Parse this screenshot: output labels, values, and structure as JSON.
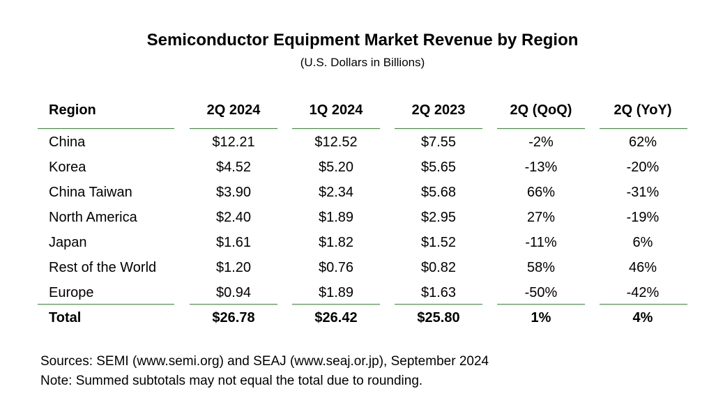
{
  "title": "Semiconductor Equipment Market Revenue by Region",
  "subtitle": "(U.S. Dollars in Billions)",
  "chart_data": {
    "type": "table",
    "title": "Semiconductor Equipment Market Revenue by Region",
    "subtitle": "(U.S. Dollars in Billions)",
    "columns": [
      "Region",
      "2Q 2024",
      "1Q 2024",
      "2Q 2023",
      "2Q (QoQ)",
      "2Q (YoY)"
    ],
    "rows": [
      [
        "China",
        "$12.21",
        "$12.52",
        "$7.55",
        "-2%",
        "62%"
      ],
      [
        "Korea",
        "$4.52",
        "$5.20",
        "$5.65",
        "-13%",
        "-20%"
      ],
      [
        "China Taiwan",
        "$3.90",
        "$2.34",
        "$5.68",
        "66%",
        "-31%"
      ],
      [
        "North America",
        "$2.40",
        "$1.89",
        "$2.95",
        "27%",
        "-19%"
      ],
      [
        "Japan",
        "$1.61",
        "$1.82",
        "$1.52",
        "-11%",
        "6%"
      ],
      [
        "Rest of the World",
        "$1.20",
        "$0.76",
        "$0.82",
        "58%",
        "46%"
      ],
      [
        "Europe",
        "$0.94",
        "$1.89",
        "$1.63",
        "-50%",
        "-42%"
      ]
    ],
    "total": [
      "Total",
      "$26.78",
      "$26.42",
      "$25.80",
      "1%",
      "4%"
    ],
    "rule_color": "#2e8b2e"
  },
  "footer": {
    "sources": "Sources: SEMI (www.semi.org) and SEAJ (www.seaj.or.jp), September 2024",
    "note": "Note: Summed subtotals may not equal the total due to rounding."
  }
}
